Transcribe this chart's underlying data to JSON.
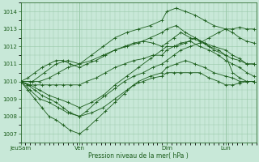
{
  "title": "",
  "xlabel": "Pression niveau de la mer( hPa )",
  "bg_color": "#c8e8d8",
  "grid_color": "#98c8a8",
  "line_color": "#1a5c1a",
  "ylim": [
    1006.5,
    1014.5
  ],
  "yticks": [
    1007,
    1008,
    1009,
    1010,
    1011,
    1012,
    1013,
    1014
  ],
  "xlim": [
    0,
    100
  ],
  "xtick_positions": [
    0,
    25,
    62,
    87,
    96
  ],
  "xtick_labels": [
    "JeuSam",
    "Ven",
    "Dim",
    "Lun",
    ""
  ],
  "vlines": [
    0,
    25,
    62,
    87
  ],
  "series": [
    {
      "x": [
        0,
        3,
        6,
        9,
        12,
        15,
        18,
        21,
        25,
        28,
        32,
        36,
        40,
        44,
        48,
        52,
        56,
        60,
        62,
        65,
        68,
        72,
        76,
        80,
        84,
        87,
        90,
        93,
        96,
        99
      ],
      "y": [
        1010.0,
        1009.8,
        1009.5,
        1009.2,
        1009.0,
        1008.8,
        1008.5,
        1008.2,
        1008.0,
        1008.3,
        1008.8,
        1009.2,
        1009.6,
        1010.0,
        1010.3,
        1010.5,
        1010.8,
        1011.0,
        1011.2,
        1011.5,
        1011.8,
        1012.0,
        1012.2,
        1012.5,
        1012.8,
        1013.0,
        1013.0,
        1013.1,
        1013.0,
        1013.0
      ]
    },
    {
      "x": [
        0,
        3,
        6,
        9,
        12,
        15,
        18,
        21,
        25,
        28,
        32,
        36,
        40,
        44,
        48,
        52,
        56,
        60,
        62,
        65,
        68,
        72,
        76,
        80,
        84,
        87,
        90,
        93,
        96,
        99
      ],
      "y": [
        1010.0,
        1009.5,
        1009.0,
        1008.5,
        1008.0,
        1007.8,
        1007.5,
        1007.2,
        1007.0,
        1007.3,
        1007.8,
        1008.3,
        1008.8,
        1009.3,
        1009.8,
        1010.0,
        1010.2,
        1010.3,
        1010.5,
        1010.5,
        1010.5,
        1010.5,
        1010.5,
        1010.2,
        1010.0,
        1009.8,
        1009.8,
        1009.9,
        1010.0,
        1010.0
      ]
    },
    {
      "x": [
        0,
        3,
        6,
        9,
        12,
        15,
        18,
        21,
        25,
        28,
        32,
        36,
        40,
        44,
        48,
        52,
        56,
        60,
        62,
        65,
        68,
        72,
        76,
        80,
        84,
        87,
        90,
        93,
        96,
        99
      ],
      "y": [
        1010.0,
        1009.8,
        1009.8,
        1009.8,
        1009.8,
        1009.8,
        1009.8,
        1009.8,
        1009.8,
        1010.0,
        1010.2,
        1010.5,
        1010.8,
        1011.0,
        1011.2,
        1011.3,
        1011.5,
        1011.5,
        1011.8,
        1012.0,
        1012.2,
        1012.3,
        1012.0,
        1011.8,
        1011.5,
        1011.2,
        1011.0,
        1010.8,
        1010.5,
        1010.3
      ]
    },
    {
      "x": [
        0,
        3,
        6,
        9,
        12,
        15,
        18,
        21,
        25,
        28,
        32,
        36,
        40,
        44,
        48,
        52,
        56,
        60,
        62,
        65,
        68,
        72,
        76,
        80,
        84,
        87,
        90,
        93,
        96,
        99
      ],
      "y": [
        1010.0,
        1010.2,
        1010.5,
        1010.8,
        1011.0,
        1011.2,
        1011.2,
        1011.0,
        1010.8,
        1011.0,
        1011.2,
        1011.5,
        1011.8,
        1012.0,
        1012.2,
        1012.3,
        1012.2,
        1012.0,
        1012.2,
        1012.5,
        1012.8,
        1012.5,
        1012.3,
        1012.0,
        1011.8,
        1011.5,
        1011.3,
        1011.2,
        1011.0,
        1011.0
      ]
    },
    {
      "x": [
        0,
        4,
        8,
        12,
        16,
        20,
        25,
        30,
        35,
        40,
        45,
        50,
        55,
        60,
        62,
        66,
        70,
        74,
        78,
        82,
        87,
        90,
        93,
        96,
        99
      ],
      "y": [
        1010.0,
        1010.0,
        1010.0,
        1010.2,
        1010.5,
        1010.8,
        1011.0,
        1011.5,
        1012.0,
        1012.5,
        1012.8,
        1013.0,
        1013.2,
        1013.5,
        1014.0,
        1014.2,
        1014.0,
        1013.8,
        1013.5,
        1013.2,
        1013.0,
        1012.8,
        1012.5,
        1012.3,
        1012.2
      ]
    },
    {
      "x": [
        0,
        4,
        8,
        12,
        16,
        20,
        25,
        30,
        35,
        40,
        45,
        50,
        55,
        60,
        62,
        66,
        70,
        74,
        78,
        82,
        87,
        90,
        93,
        96,
        99
      ],
      "y": [
        1010.0,
        1009.8,
        1009.5,
        1009.2,
        1009.0,
        1008.8,
        1008.5,
        1008.8,
        1009.2,
        1009.8,
        1010.3,
        1010.8,
        1011.3,
        1011.8,
        1012.0,
        1012.0,
        1012.2,
        1012.5,
        1012.2,
        1011.8,
        1011.5,
        1010.5,
        1010.2,
        1010.0,
        1010.0
      ]
    },
    {
      "x": [
        0,
        4,
        8,
        12,
        16,
        20,
        25,
        30,
        35,
        40,
        45,
        50,
        55,
        60,
        62,
        66,
        70,
        74,
        78,
        82,
        87,
        90,
        93,
        96,
        99
      ],
      "y": [
        1010.0,
        1009.5,
        1009.0,
        1008.8,
        1008.5,
        1008.2,
        1008.0,
        1008.2,
        1008.5,
        1009.0,
        1009.5,
        1010.0,
        1010.3,
        1010.5,
        1010.8,
        1011.0,
        1011.2,
        1011.0,
        1010.8,
        1010.5,
        1010.3,
        1010.2,
        1010.0,
        1010.0,
        1010.0
      ]
    },
    {
      "x": [
        0,
        5,
        10,
        15,
        20,
        25,
        30,
        35,
        40,
        45,
        50,
        55,
        60,
        62,
        66,
        70,
        74,
        78,
        82,
        87,
        90,
        93,
        96,
        99
      ],
      "y": [
        1010.0,
        1010.0,
        1010.5,
        1011.0,
        1011.2,
        1011.0,
        1011.2,
        1011.5,
        1011.8,
        1012.0,
        1012.2,
        1012.5,
        1012.8,
        1013.0,
        1013.2,
        1012.8,
        1012.5,
        1012.2,
        1012.0,
        1011.8,
        1011.5,
        1011.3,
        1011.0,
        1011.0
      ]
    }
  ]
}
